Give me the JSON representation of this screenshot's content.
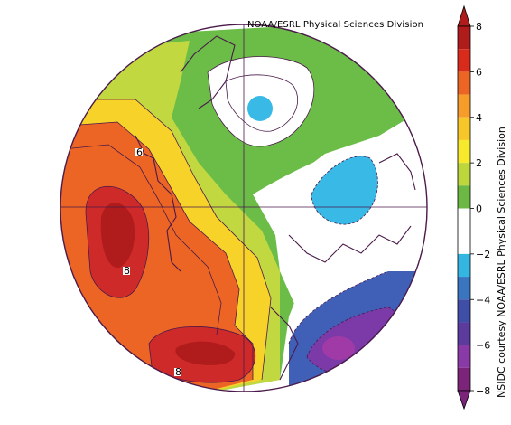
{
  "credits": {
    "top": "NOAA/ESRL Physical Sciences Division",
    "side": "NSIDC courtesy NOAA/ESRL Physical Sciences Division"
  },
  "colorbar": {
    "ticks": [
      "8",
      "6",
      "4",
      "2",
      "0",
      "−2",
      "−4",
      "−6",
      "−8"
    ],
    "colors": [
      "#b01c1c",
      "#d92b1c",
      "#ec6524",
      "#f59c2a",
      "#f7c72a",
      "#f7ea2c",
      "#bcd63c",
      "#6bb844",
      "#ffffff",
      "#ffffff",
      "#34b6e2",
      "#3a76bf",
      "#3f4ea6",
      "#5c3b9e",
      "#8a3aa6",
      "#7c2479"
    ]
  },
  "contour_labels": [
    "6",
    "8",
    "8"
  ],
  "colors": {
    "red_core": "#cf2a2a",
    "orange": "#ec6524",
    "yellow": "#f7d32a",
    "lime": "#c2d840",
    "green": "#6bbd48",
    "cyan": "#38b9e6",
    "blue": "#4060b8",
    "purple": "#7c3aa8",
    "magenta": "#a03aa6",
    "coast": "#4a1a4a"
  }
}
